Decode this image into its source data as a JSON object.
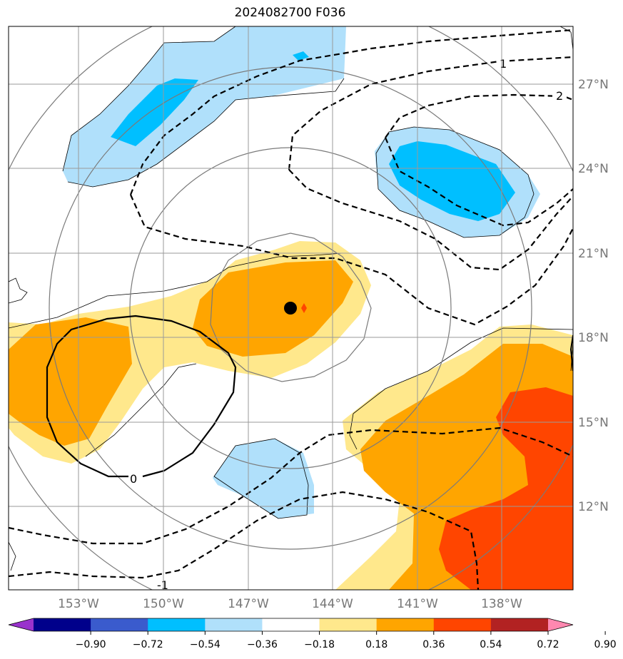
{
  "title": "2024082700 F036",
  "map": {
    "lon_labels": [
      "153°W",
      "150°W",
      "147°W",
      "144°W",
      "141°W",
      "138°W"
    ],
    "lat_labels": [
      "27°N",
      "24°N",
      "21°N",
      "18°N",
      "15°N",
      "12°N"
    ],
    "contour_labels": [
      "1",
      "2",
      "0",
      "-1"
    ]
  },
  "colorbar": {
    "ticks": [
      "−0.90",
      "−0.72",
      "−0.54",
      "−0.36",
      "−0.18",
      "0.18",
      "0.36",
      "0.54",
      "0.72",
      "0.90"
    ],
    "colors": [
      "#9932cc",
      "#00008b",
      "#3a5bcd",
      "#00bfff",
      "#b0e0fb",
      "#ffffff",
      "#ffe88c",
      "#ffa500",
      "#ff4500",
      "#b22222",
      "#ff88b0"
    ]
  },
  "colors": {
    "light_blue": "#b0e0fb",
    "deep_sky_blue": "#00bfff",
    "light_yellow": "#ffe88c",
    "orange": "#ffa500",
    "orange_red": "#ff4500",
    "storm_marker": "#ff4500"
  }
}
